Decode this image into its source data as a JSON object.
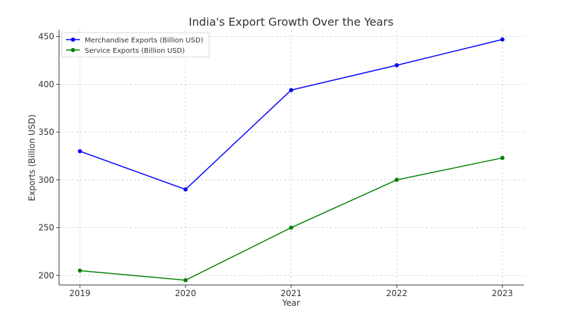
{
  "chart_data": {
    "type": "line",
    "title": "India's Export Growth Over the Years",
    "xlabel": "Year",
    "ylabel": "Exports (Billion USD)",
    "x": [
      "2019",
      "2020",
      "2021",
      "2022",
      "2023"
    ],
    "yticks": [
      "200",
      "250",
      "300",
      "350",
      "400",
      "450"
    ],
    "ylim": [
      190,
      457
    ],
    "grid": true,
    "legend_position": "top-left",
    "series": [
      {
        "name": "Merchandise Exports (Billion USD)",
        "color": "#0000ff",
        "values": [
          330,
          290,
          394,
          420,
          447
        ]
      },
      {
        "name": "Service Exports (Billion USD)",
        "color": "#008000",
        "values": [
          205,
          195,
          250,
          300,
          323
        ]
      }
    ]
  }
}
